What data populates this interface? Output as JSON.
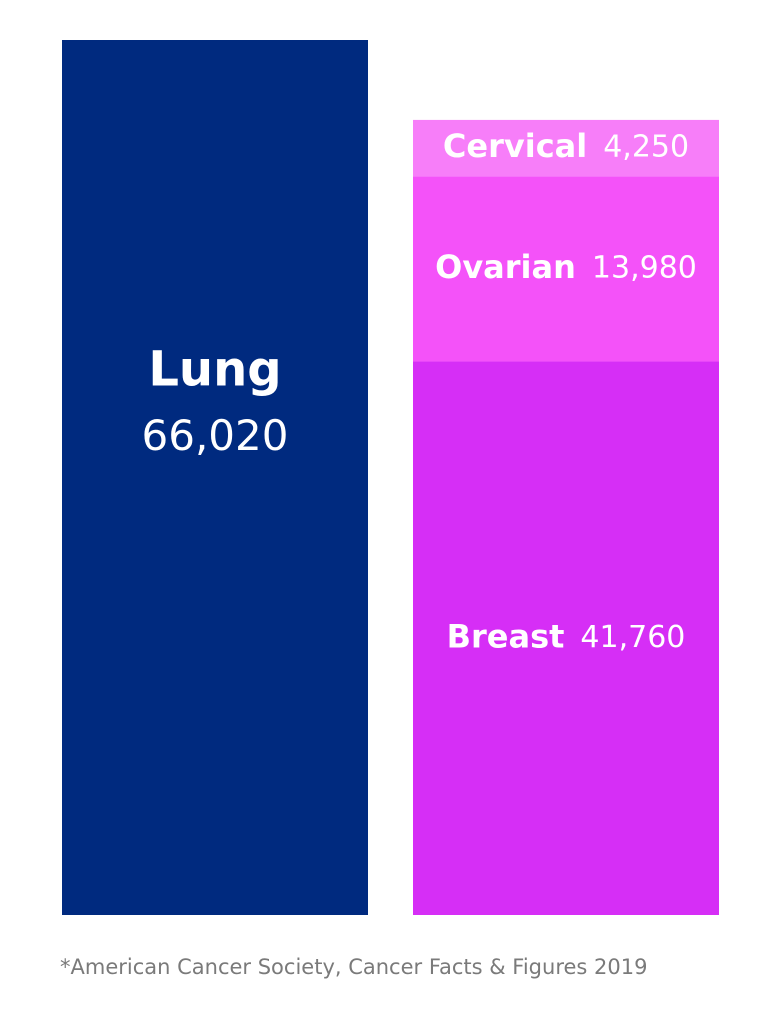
{
  "chart_data": {
    "type": "stacked-bar",
    "categories": [
      null,
      null
    ],
    "series": [
      {
        "name": "Lung",
        "color": "#002a7f",
        "values": [
          66020,
          null
        ],
        "value_labels": [
          "66,020",
          null
        ]
      },
      {
        "name": "Breast",
        "color": "#d62ef6",
        "values": [
          null,
          41760
        ],
        "value_labels": [
          null,
          "41,760"
        ]
      },
      {
        "name": "Ovarian",
        "color": "#f452f9",
        "values": [
          null,
          13980
        ],
        "value_labels": [
          null,
          "13,980"
        ]
      },
      {
        "name": "Cervical",
        "color": "#f77ef9",
        "values": [
          null,
          4250
        ],
        "value_labels": [
          null,
          "4,250"
        ]
      }
    ],
    "footnote": "*American Cancer Society, Cancer Facts & Figures 2019"
  }
}
